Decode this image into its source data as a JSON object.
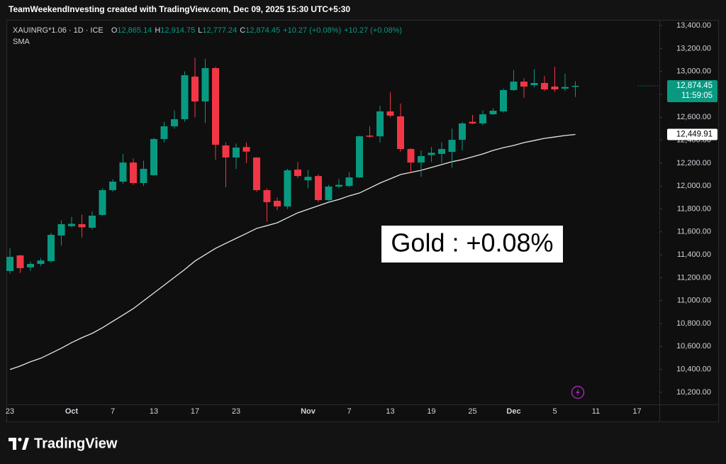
{
  "chart_data": {
    "type": "candlestick",
    "credit": "TeamWeekendInvesting created with TradingView.com, Dec 09, 2025 15:30 UTC+5:30",
    "brand": "TradingView",
    "ohlc_header": {
      "symbol": "XAUINRG*1.06 · 1D · ICE",
      "items": [
        {
          "key": "O",
          "value": "12,865.14"
        },
        {
          "key": "H",
          "value": "12,914.75"
        },
        {
          "key": "L",
          "value": "12,777.24"
        },
        {
          "key": "C",
          "value": "12,874.45"
        }
      ],
      "change": "+10.27 (+0.08%)",
      "change_alt": "+10.27 (+0.08%)"
    },
    "annotation": "Gold : +0.08%",
    "categories": [
      "23",
      null,
      null,
      null,
      null,
      null,
      "Oct",
      null,
      null,
      null,
      "7",
      null,
      null,
      null,
      "13",
      null,
      null,
      null,
      "17",
      null,
      null,
      null,
      "23",
      null,
      null,
      null,
      null,
      null,
      null,
      "Nov",
      null,
      null,
      null,
      "7",
      null,
      null,
      null,
      "13",
      null,
      null,
      null,
      "19",
      null,
      null,
      null,
      "25",
      null,
      null,
      null,
      "Dec",
      null,
      null,
      null,
      "5",
      null,
      null,
      null,
      "11",
      null,
      null,
      null,
      "17"
    ],
    "open": [
      11258,
      11394,
      11290,
      11320,
      11345,
      11568,
      11650,
      11667,
      11636,
      11747,
      11964,
      12038,
      12205,
      12026,
      12094,
      12410,
      12521,
      12583,
      12955,
      12738,
      13029,
      12354,
      12249,
      12340,
      12249,
      11964,
      11871,
      11822,
      12143,
      12050,
      12087,
      11877,
      11995,
      12000,
      12075,
      12440,
      12434,
      12651,
      12608,
      12323,
      12205,
      12270,
      12280,
      12298,
      12403,
      12560,
      12546,
      12626,
      12651,
      12837,
      12911,
      12880,
      12899,
      12868,
      12850,
      12865.14,
      null,
      null,
      null,
      null,
      null,
      null
    ],
    "high": [
      11456,
      11400,
      11340,
      11370,
      11590,
      11700,
      11730,
      11750,
      11780,
      11980,
      12060,
      12280,
      12240,
      12220,
      12420,
      12560,
      12660,
      13000,
      13120,
      13110,
      13040,
      12380,
      12370,
      12380,
      12250,
      11980,
      11900,
      12150,
      12210,
      12140,
      12100,
      12010,
      12060,
      12120,
      12440,
      12520,
      12700,
      12820,
      12720,
      12330,
      12310,
      12340,
      12380,
      12500,
      12560,
      12620,
      12660,
      12680,
      12850,
      13010,
      12940,
      13020,
      12960,
      13040,
      12980,
      12914.75,
      null,
      null,
      null,
      null,
      null,
      null
    ],
    "low": [
      11234,
      11240,
      11260,
      11300,
      11330,
      11480,
      11640,
      11550,
      11620,
      11740,
      11950,
      12020,
      12010,
      12000,
      12090,
      12380,
      12500,
      12560,
      12600,
      12550,
      12230,
      11990,
      12150,
      12200,
      11950,
      11690,
      11790,
      11800,
      12070,
      11980,
      11860,
      11870,
      11980,
      11990,
      12070,
      12420,
      12380,
      12600,
      12300,
      12110,
      12080,
      12210,
      12200,
      12160,
      12310,
      12540,
      12530,
      12620,
      12640,
      12830,
      12770,
      12860,
      12830,
      12820,
      12830,
      12777.24,
      null,
      null,
      null,
      null,
      null,
      null
    ],
    "close": [
      11382,
      11283,
      11320,
      11350,
      11574,
      11667,
      11670,
      11640,
      11741,
      11964,
      12038,
      12205,
      12026,
      12150,
      12410,
      12521,
      12583,
      12967,
      12738,
      13029,
      12360,
      12249,
      12335,
      12300,
      11964,
      11859,
      11822,
      12137,
      12087,
      12080,
      11877,
      11995,
      12010,
      12075,
      12434,
      12430,
      12651,
      12614,
      12323,
      12205,
      12261,
      12290,
      12323,
      12403,
      12546,
      12546,
      12626,
      12657,
      12837,
      12911,
      12868,
      12899,
      12843,
      12843,
      12864.18,
      12874.45,
      null,
      null,
      null,
      null,
      null,
      null
    ],
    "up_color": "#089981",
    "down_color": "#f23645",
    "overlays": [
      {
        "name": "SMA",
        "color": "#e6e6e6",
        "values": [
          10398,
          10429,
          10466,
          10497,
          10540,
          10584,
          10633,
          10676,
          10714,
          10763,
          10819,
          10874,
          10930,
          10998,
          11066,
          11134,
          11203,
          11271,
          11345,
          11401,
          11456,
          11500,
          11543,
          11586,
          11630,
          11654,
          11679,
          11723,
          11766,
          11797,
          11828,
          11859,
          11883,
          11914,
          11939,
          11982,
          12026,
          12063,
          12100,
          12119,
          12137,
          12162,
          12187,
          12212,
          12230,
          12255,
          12280,
          12311,
          12335,
          12354,
          12379,
          12397,
          12416,
          12428,
          12441,
          12449.91,
          null,
          null,
          null,
          null,
          null,
          null
        ]
      }
    ],
    "last_price": {
      "value": 12874.45,
      "label": "12,874.45"
    },
    "countdown": "11:59:05",
    "sma_last": {
      "value": 12449.91,
      "label": "12,449.91"
    },
    "ylim": [
      10094,
      13450
    ],
    "yticks": [
      {
        "value": 10200,
        "label": "10,200.00"
      },
      {
        "value": 10400,
        "label": "10,400.00"
      },
      {
        "value": 10600,
        "label": "10,600.00"
      },
      {
        "value": 10800,
        "label": "10,800.00"
      },
      {
        "value": 11000,
        "label": "11,000.00"
      },
      {
        "value": 11200,
        "label": "11,200.00"
      },
      {
        "value": 11400,
        "label": "11,400.00"
      },
      {
        "value": 11600,
        "label": "11,600.00"
      },
      {
        "value": 11800,
        "label": "11,800.00"
      },
      {
        "value": 12000,
        "label": "12,000.00"
      },
      {
        "value": 12200,
        "label": "12,200.00"
      },
      {
        "value": 12400,
        "label": "12,400.00"
      },
      {
        "value": 12600,
        "label": "12,600.00"
      },
      {
        "value": 12800,
        "label": "12,800.00"
      },
      {
        "value": 13000,
        "label": "13,000.00"
      },
      {
        "value": 13200,
        "label": "13,200.00"
      },
      {
        "value": 13400,
        "label": "13,400.00"
      }
    ],
    "grid": false
  }
}
